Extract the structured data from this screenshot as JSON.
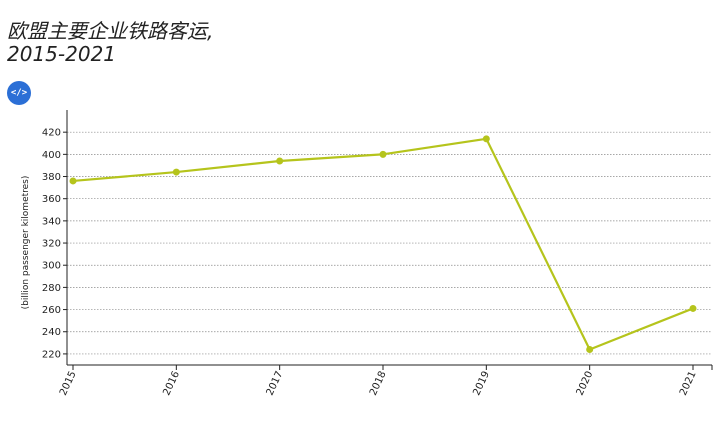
{
  "chart_data": {
    "type": "line",
    "title_line1": "欧盟主要企业铁路客运,",
    "title_line2": "2015-2021",
    "xlabel": "",
    "ylabel": "(billion passenger kilometres)",
    "ylim": [
      210,
      440
    ],
    "yticks": [
      220,
      240,
      260,
      280,
      300,
      320,
      340,
      360,
      380,
      400,
      420
    ],
    "categories": [
      "2015",
      "2016",
      "2017",
      "2018",
      "2019",
      "2020",
      "2021"
    ],
    "series": [
      {
        "values": [
          376,
          384,
          394,
          400,
          414,
          224,
          261
        ],
        "color": "#b5c41c"
      }
    ],
    "grid": true,
    "legend": "none"
  },
  "toolbar": {
    "embed_label": "</>",
    "embed_icon": "code-icon"
  }
}
